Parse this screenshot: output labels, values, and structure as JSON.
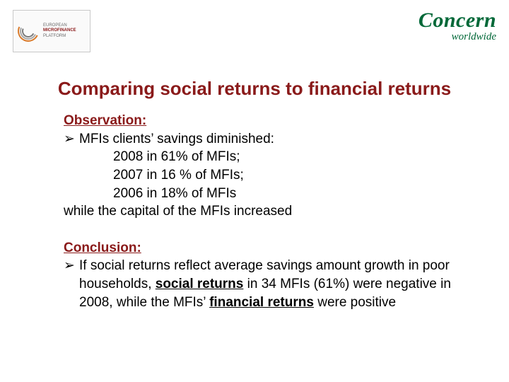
{
  "colors": {
    "title": "#8a1a1a",
    "section_head": "#8a1a1a",
    "body_text": "#000000",
    "concern_green": "#006838",
    "background": "#ffffff"
  },
  "logos": {
    "left": {
      "line1": "EUROPEAN",
      "line2": "MICROFINANCE",
      "line3": "PLATFORM"
    },
    "right": {
      "main": "Concern",
      "sub": "worldwide"
    }
  },
  "title": "Comparing social returns to financial returns",
  "observation": {
    "heading": "Observation:",
    "bullet_glyph": "➢",
    "bullet_text": "MFIs clients’ savings diminished:",
    "lines": [
      "2008 in 61% of MFIs;",
      "2007 in 16 % of MFIs;",
      "2006 in 18% of MFIs"
    ],
    "tail": "while the capital of the MFIs increased"
  },
  "conclusion": {
    "heading": "Conclusion:",
    "bullet_glyph": "➢",
    "pre": "If social returns reflect average savings amount growth in poor households, ",
    "underlined1": "social returns",
    "mid": " in 34 MFIs (61%) were negative in 2008, while the MFIs’ ",
    "underlined2": "financial returns",
    "post": " were positive"
  }
}
